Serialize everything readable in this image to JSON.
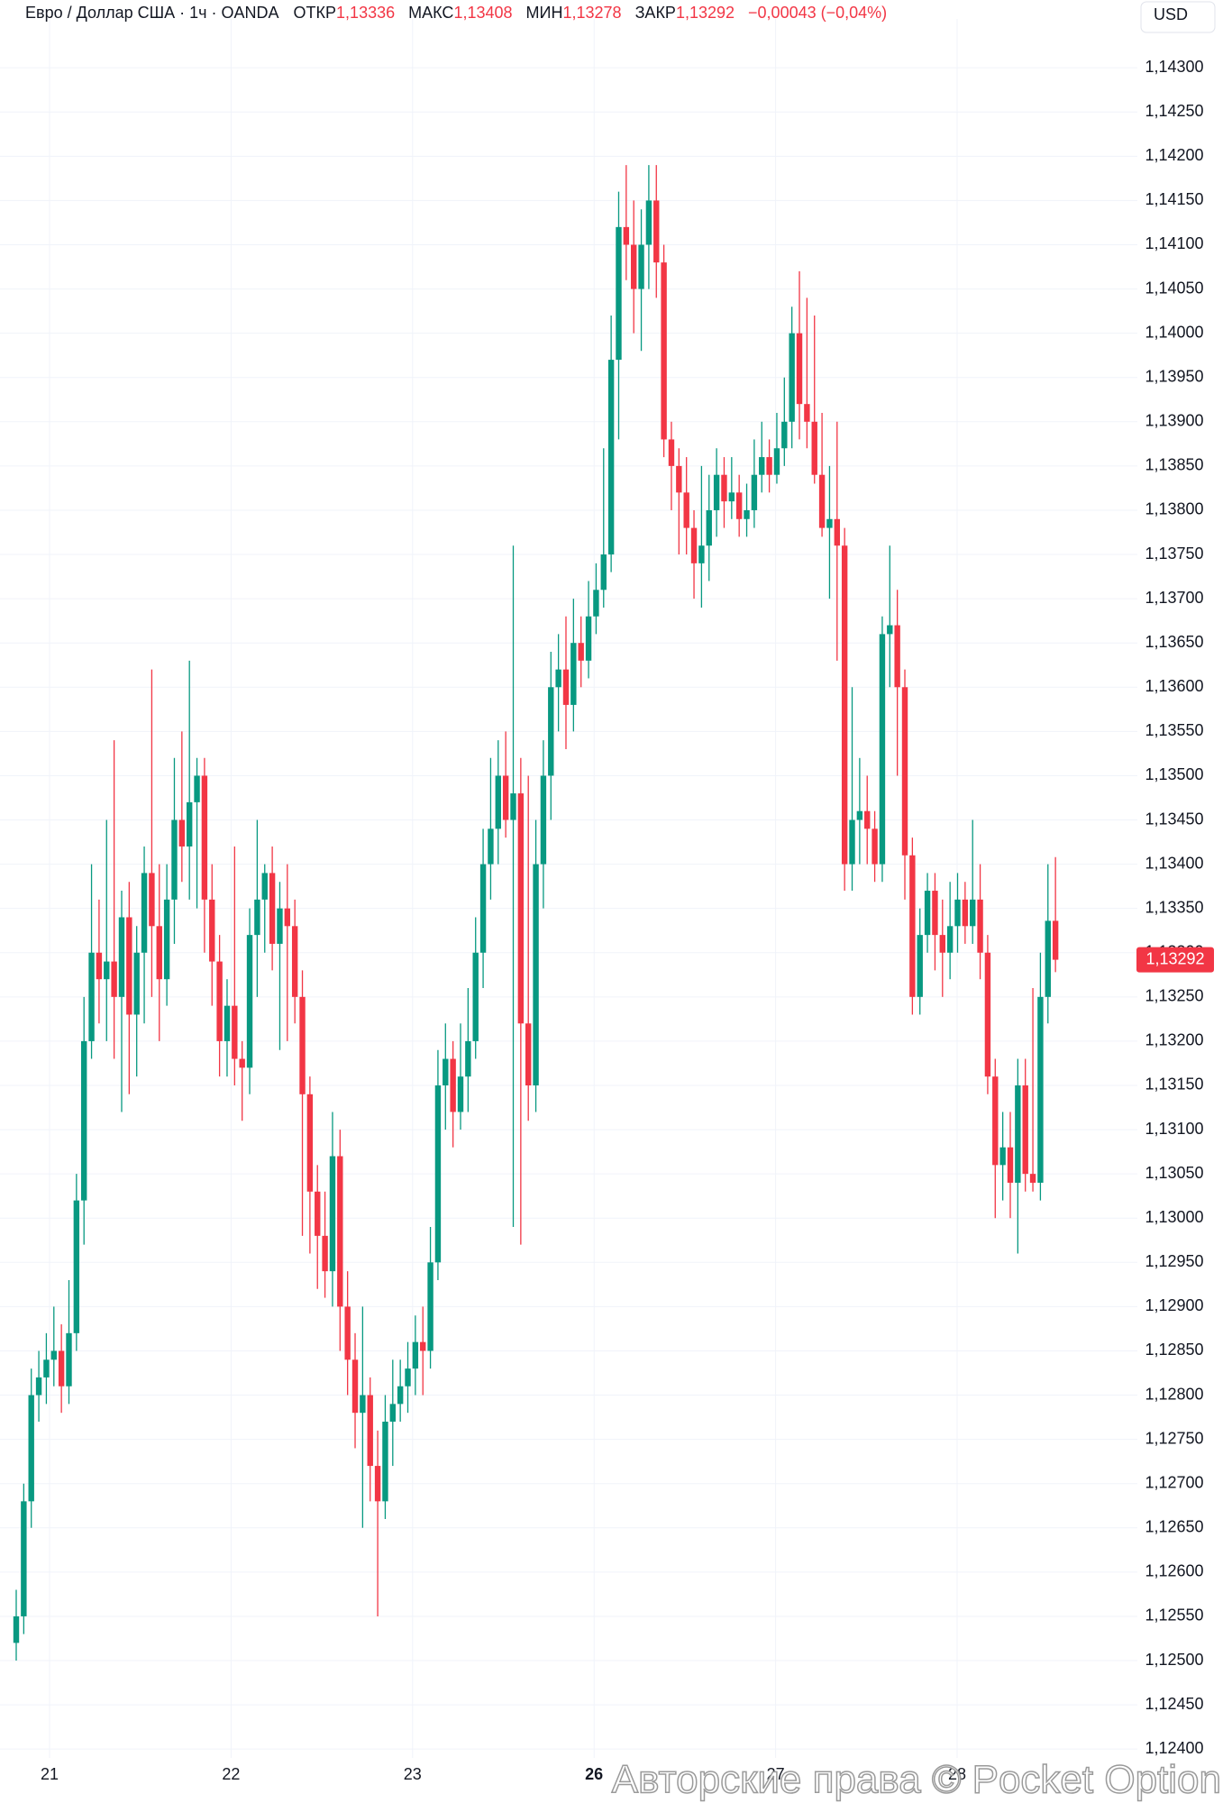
{
  "chart_data": {
    "type": "candlestick",
    "header": {
      "symbol": "Евро / Доллар США · 1ч · OANDA",
      "open_label": "ОТКР",
      "open": "1,13336",
      "high_label": "МАКС",
      "high": "1,13408",
      "low_label": "МИН",
      "low": "1,13278",
      "close_label": "ЗАКР",
      "close": "1,13292",
      "change": "−0,00043 (−0,04%)"
    },
    "currency": "USD",
    "last_price_label": "1,13292",
    "watermark": "Авторские права © Pocket Option",
    "up_color": "#089981",
    "down_color": "#f23645",
    "grid": true,
    "x_labels": [
      "21",
      "22",
      "23",
      "26",
      "27",
      "28"
    ],
    "ylim": [
      1.1239,
      1.14345
    ],
    "yticks": [
      {
        "value": 1.143,
        "label": "1,14300"
      },
      {
        "value": 1.1425,
        "label": "1,14250"
      },
      {
        "value": 1.142,
        "label": "1,14200"
      },
      {
        "value": 1.1415,
        "label": "1,14150"
      },
      {
        "value": 1.141,
        "label": "1,14100"
      },
      {
        "value": 1.1405,
        "label": "1,14050"
      },
      {
        "value": 1.14,
        "label": "1,14000"
      },
      {
        "value": 1.1395,
        "label": "1,13950"
      },
      {
        "value": 1.139,
        "label": "1,13900"
      },
      {
        "value": 1.1385,
        "label": "1,13850"
      },
      {
        "value": 1.138,
        "label": "1,13800"
      },
      {
        "value": 1.1375,
        "label": "1,13750"
      },
      {
        "value": 1.137,
        "label": "1,13700"
      },
      {
        "value": 1.1365,
        "label": "1,13650"
      },
      {
        "value": 1.136,
        "label": "1,13600"
      },
      {
        "value": 1.1355,
        "label": "1,13550"
      },
      {
        "value": 1.135,
        "label": "1,13500"
      },
      {
        "value": 1.1345,
        "label": "1,13450"
      },
      {
        "value": 1.134,
        "label": "1,13400"
      },
      {
        "value": 1.1335,
        "label": "1,13350"
      },
      {
        "value": 1.133,
        "label": "1,13300"
      },
      {
        "value": 1.1325,
        "label": "1,13250"
      },
      {
        "value": 1.132,
        "label": "1,13200"
      },
      {
        "value": 1.1315,
        "label": "1,13150"
      },
      {
        "value": 1.131,
        "label": "1,13100"
      },
      {
        "value": 1.1305,
        "label": "1,13050"
      },
      {
        "value": 1.13,
        "label": "1,13000"
      },
      {
        "value": 1.1295,
        "label": "1,12950"
      },
      {
        "value": 1.129,
        "label": "1,12900"
      },
      {
        "value": 1.1285,
        "label": "1,12850"
      },
      {
        "value": 1.128,
        "label": "1,12800"
      },
      {
        "value": 1.1275,
        "label": "1,12750"
      },
      {
        "value": 1.127,
        "label": "1,12700"
      },
      {
        "value": 1.1265,
        "label": "1,12650"
      },
      {
        "value": 1.126,
        "label": "1,12600"
      },
      {
        "value": 1.1255,
        "label": "1,12550"
      },
      {
        "value": 1.125,
        "label": "1,12500"
      },
      {
        "value": 1.1245,
        "label": "1,12450"
      },
      {
        "value": 1.124,
        "label": "1,12400"
      }
    ],
    "candles": [
      [
        1.1252,
        1.1258,
        1.125,
        1.1255
      ],
      [
        1.1255,
        1.127,
        1.1253,
        1.1268
      ],
      [
        1.1268,
        1.1283,
        1.1265,
        1.128
      ],
      [
        1.128,
        1.1285,
        1.1277,
        1.1282
      ],
      [
        1.1282,
        1.1287,
        1.1279,
        1.1284
      ],
      [
        1.1284,
        1.129,
        1.1281,
        1.1285
      ],
      [
        1.1285,
        1.1288,
        1.1278,
        1.1281
      ],
      [
        1.1281,
        1.1293,
        1.1279,
        1.1287
      ],
      [
        1.1287,
        1.1305,
        1.1285,
        1.1302
      ],
      [
        1.1302,
        1.1325,
        1.1297,
        1.132
      ],
      [
        1.132,
        1.134,
        1.1318,
        1.133
      ],
      [
        1.133,
        1.1336,
        1.1322,
        1.1327
      ],
      [
        1.1327,
        1.1345,
        1.132,
        1.1329
      ],
      [
        1.1329,
        1.1354,
        1.1318,
        1.1325
      ],
      [
        1.1325,
        1.1337,
        1.1312,
        1.1334
      ],
      [
        1.1334,
        1.1338,
        1.1314,
        1.1323
      ],
      [
        1.1323,
        1.1333,
        1.1316,
        1.133
      ],
      [
        1.133,
        1.1342,
        1.1322,
        1.1339
      ],
      [
        1.1339,
        1.1362,
        1.1325,
        1.1333
      ],
      [
        1.1333,
        1.134,
        1.132,
        1.1327
      ],
      [
        1.1327,
        1.134,
        1.1324,
        1.1336
      ],
      [
        1.1336,
        1.1352,
        1.1331,
        1.1345
      ],
      [
        1.1345,
        1.1355,
        1.1338,
        1.1342
      ],
      [
        1.1342,
        1.1363,
        1.1336,
        1.1347
      ],
      [
        1.1347,
        1.1352,
        1.1335,
        1.135
      ],
      [
        1.135,
        1.1352,
        1.133,
        1.1336
      ],
      [
        1.1336,
        1.134,
        1.1324,
        1.1329
      ],
      [
        1.1329,
        1.1332,
        1.1316,
        1.132
      ],
      [
        1.132,
        1.1327,
        1.1316,
        1.1324
      ],
      [
        1.1324,
        1.1342,
        1.1315,
        1.1318
      ],
      [
        1.1318,
        1.132,
        1.1311,
        1.1317
      ],
      [
        1.1317,
        1.1335,
        1.1314,
        1.1332
      ],
      [
        1.1332,
        1.1345,
        1.1325,
        1.1336
      ],
      [
        1.1336,
        1.134,
        1.133,
        1.1339
      ],
      [
        1.1339,
        1.1342,
        1.1328,
        1.1331
      ],
      [
        1.1331,
        1.1338,
        1.1319,
        1.1335
      ],
      [
        1.1335,
        1.134,
        1.132,
        1.1333
      ],
      [
        1.1333,
        1.1336,
        1.1322,
        1.1325
      ],
      [
        1.1325,
        1.1328,
        1.1298,
        1.1314
      ],
      [
        1.1314,
        1.1316,
        1.1296,
        1.1303
      ],
      [
        1.1303,
        1.1306,
        1.1292,
        1.1298
      ],
      [
        1.1298,
        1.1303,
        1.1291,
        1.1294
      ],
      [
        1.1294,
        1.1312,
        1.129,
        1.1307
      ],
      [
        1.1307,
        1.131,
        1.1285,
        1.129
      ],
      [
        1.129,
        1.1294,
        1.128,
        1.1284
      ],
      [
        1.1284,
        1.1287,
        1.1274,
        1.1278
      ],
      [
        1.1278,
        1.129,
        1.1265,
        1.128
      ],
      [
        1.128,
        1.1282,
        1.1268,
        1.1272
      ],
      [
        1.1272,
        1.1276,
        1.1255,
        1.1268
      ],
      [
        1.1268,
        1.128,
        1.1266,
        1.1277
      ],
      [
        1.1277,
        1.1284,
        1.1272,
        1.1279
      ],
      [
        1.1279,
        1.1284,
        1.1277,
        1.1281
      ],
      [
        1.1281,
        1.1286,
        1.1278,
        1.1283
      ],
      [
        1.1283,
        1.1289,
        1.128,
        1.1286
      ],
      [
        1.1286,
        1.129,
        1.128,
        1.1285
      ],
      [
        1.1285,
        1.1299,
        1.1283,
        1.1295
      ],
      [
        1.1295,
        1.1319,
        1.1293,
        1.1315
      ],
      [
        1.1315,
        1.1322,
        1.131,
        1.1318
      ],
      [
        1.1318,
        1.132,
        1.1308,
        1.1312
      ],
      [
        1.1312,
        1.1322,
        1.131,
        1.1316
      ],
      [
        1.1316,
        1.1326,
        1.1312,
        1.132
      ],
      [
        1.132,
        1.1334,
        1.1318,
        1.133
      ],
      [
        1.133,
        1.1344,
        1.1326,
        1.134
      ],
      [
        1.134,
        1.1352,
        1.1336,
        1.1344
      ],
      [
        1.1344,
        1.1354,
        1.134,
        1.135
      ],
      [
        1.135,
        1.1355,
        1.1343,
        1.1345
      ],
      [
        1.1345,
        1.1376,
        1.1299,
        1.1348
      ],
      [
        1.1348,
        1.1352,
        1.1297,
        1.1322
      ],
      [
        1.1322,
        1.135,
        1.1311,
        1.1315
      ],
      [
        1.1315,
        1.1345,
        1.1312,
        1.134
      ],
      [
        1.134,
        1.1354,
        1.1335,
        1.135
      ],
      [
        1.135,
        1.1364,
        1.1345,
        1.136
      ],
      [
        1.136,
        1.1366,
        1.1355,
        1.1362
      ],
      [
        1.1362,
        1.1368,
        1.1353,
        1.1358
      ],
      [
        1.1358,
        1.137,
        1.1355,
        1.1365
      ],
      [
        1.1365,
        1.1368,
        1.136,
        1.1363
      ],
      [
        1.1363,
        1.1372,
        1.1361,
        1.1368
      ],
      [
        1.1368,
        1.1374,
        1.1366,
        1.1371
      ],
      [
        1.1371,
        1.1387,
        1.1369,
        1.1375
      ],
      [
        1.1375,
        1.1402,
        1.1373,
        1.1397
      ],
      [
        1.1397,
        1.1416,
        1.1388,
        1.1412
      ],
      [
        1.1412,
        1.1419,
        1.1406,
        1.141
      ],
      [
        1.141,
        1.1415,
        1.14,
        1.1405
      ],
      [
        1.1405,
        1.1414,
        1.1398,
        1.141
      ],
      [
        1.141,
        1.1419,
        1.1405,
        1.1415
      ],
      [
        1.1415,
        1.1419,
        1.1404,
        1.1408
      ],
      [
        1.1408,
        1.141,
        1.1386,
        1.1388
      ],
      [
        1.1388,
        1.139,
        1.138,
        1.1385
      ],
      [
        1.1385,
        1.1387,
        1.1375,
        1.1382
      ],
      [
        1.1382,
        1.1386,
        1.1375,
        1.1378
      ],
      [
        1.1378,
        1.138,
        1.137,
        1.1374
      ],
      [
        1.1374,
        1.1385,
        1.1369,
        1.1376
      ],
      [
        1.1376,
        1.1384,
        1.1372,
        1.138
      ],
      [
        1.138,
        1.1387,
        1.1377,
        1.1384
      ],
      [
        1.1384,
        1.1386,
        1.1378,
        1.1381
      ],
      [
        1.1381,
        1.1386,
        1.1379,
        1.1382
      ],
      [
        1.1382,
        1.1384,
        1.1377,
        1.1379
      ],
      [
        1.1379,
        1.1383,
        1.1377,
        1.138
      ],
      [
        1.138,
        1.1388,
        1.1378,
        1.1384
      ],
      [
        1.1384,
        1.139,
        1.1382,
        1.1386
      ],
      [
        1.1386,
        1.1388,
        1.1382,
        1.1384
      ],
      [
        1.1384,
        1.1391,
        1.1383,
        1.1387
      ],
      [
        1.1387,
        1.1395,
        1.1385,
        1.139
      ],
      [
        1.139,
        1.1403,
        1.1387,
        1.14
      ],
      [
        1.14,
        1.1407,
        1.1388,
        1.1392
      ],
      [
        1.1392,
        1.1404,
        1.1387,
        1.139
      ],
      [
        1.139,
        1.1402,
        1.1383,
        1.1384
      ],
      [
        1.1384,
        1.1391,
        1.1377,
        1.1378
      ],
      [
        1.1378,
        1.1385,
        1.137,
        1.1379
      ],
      [
        1.1379,
        1.139,
        1.1363,
        1.1376
      ],
      [
        1.1376,
        1.1378,
        1.1337,
        1.134
      ],
      [
        1.134,
        1.136,
        1.1337,
        1.1345
      ],
      [
        1.1345,
        1.1352,
        1.134,
        1.1346
      ],
      [
        1.1346,
        1.135,
        1.134,
        1.1344
      ],
      [
        1.1344,
        1.1346,
        1.1338,
        1.134
      ],
      [
        1.134,
        1.1368,
        1.1338,
        1.1366
      ],
      [
        1.1366,
        1.1376,
        1.136,
        1.1367
      ],
      [
        1.1367,
        1.1371,
        1.135,
        1.136
      ],
      [
        1.136,
        1.1362,
        1.1336,
        1.1341
      ],
      [
        1.1341,
        1.1343,
        1.1323,
        1.1325
      ],
      [
        1.1325,
        1.1335,
        1.1323,
        1.1332
      ],
      [
        1.1332,
        1.1339,
        1.133,
        1.1337
      ],
      [
        1.1337,
        1.1339,
        1.1328,
        1.1332
      ],
      [
        1.1332,
        1.1336,
        1.1325,
        1.133
      ],
      [
        1.133,
        1.1338,
        1.1327,
        1.1333
      ],
      [
        1.1333,
        1.1339,
        1.133,
        1.1336
      ],
      [
        1.1336,
        1.1338,
        1.1331,
        1.1333
      ],
      [
        1.1333,
        1.1345,
        1.1331,
        1.1336
      ],
      [
        1.1336,
        1.134,
        1.1327,
        1.133
      ],
      [
        1.133,
        1.1332,
        1.1314,
        1.1316
      ],
      [
        1.1316,
        1.1318,
        1.13,
        1.1306
      ],
      [
        1.1306,
        1.1312,
        1.1302,
        1.1308
      ],
      [
        1.1308,
        1.1312,
        1.13,
        1.1304
      ],
      [
        1.1304,
        1.1318,
        1.1296,
        1.1315
      ],
      [
        1.1315,
        1.1318,
        1.1303,
        1.1305
      ],
      [
        1.1305,
        1.1326,
        1.1303,
        1.1304
      ],
      [
        1.1304,
        1.133,
        1.1302,
        1.1325
      ],
      [
        1.1325,
        1.134,
        1.1322,
        1.13336
      ],
      [
        1.13336,
        1.13408,
        1.13278,
        1.13292
      ]
    ]
  }
}
